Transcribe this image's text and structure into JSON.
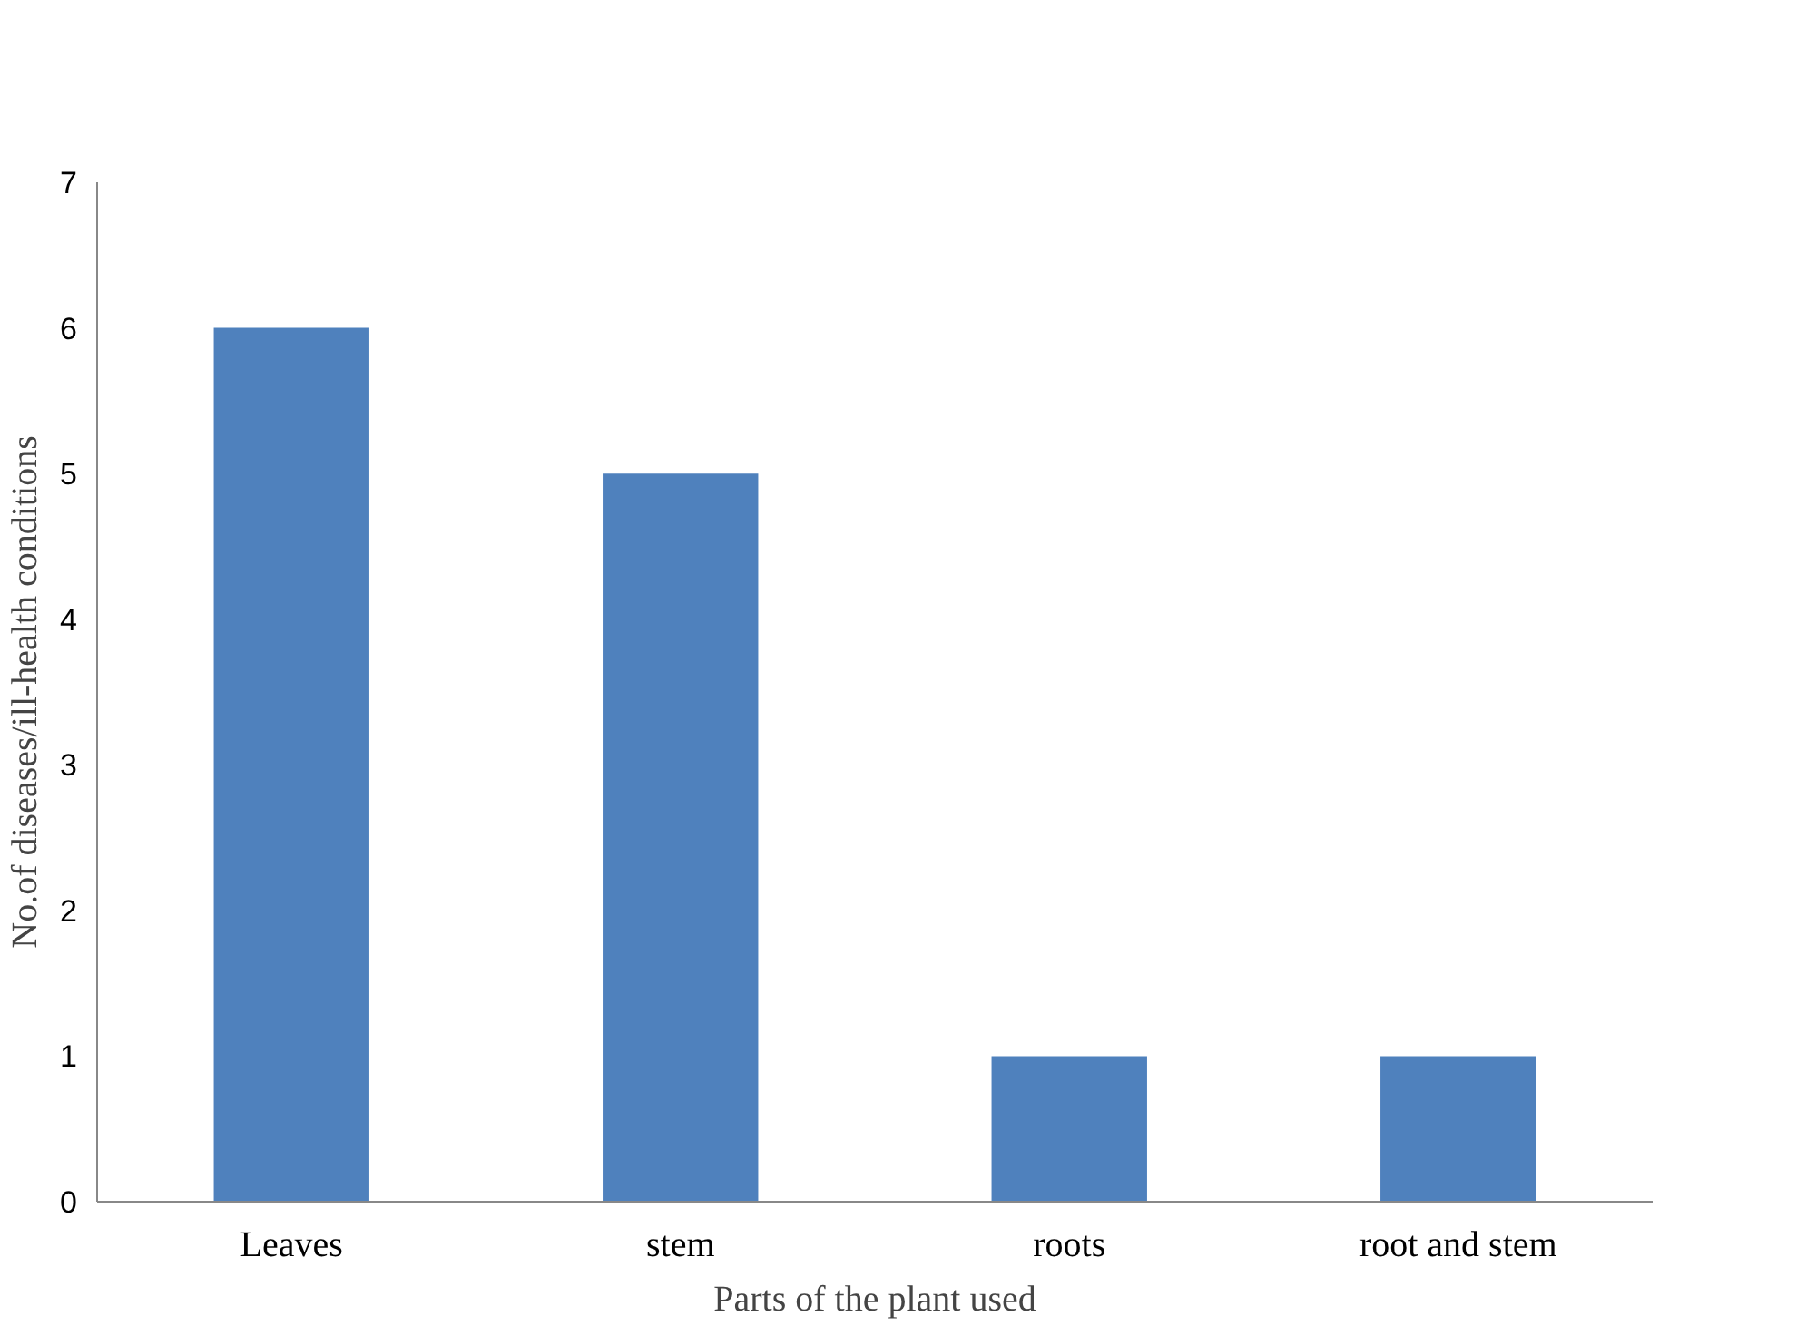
{
  "chart_data": {
    "type": "bar",
    "xlabel": "Parts of the plant used",
    "ylabel": "No.of diseases/ill-health conditions",
    "categories": [
      "Leaves",
      "stem",
      "roots",
      "root and stem"
    ],
    "values": [
      6,
      5,
      1,
      1
    ],
    "color": "#4f81bd",
    "ylim": [
      0,
      7
    ],
    "yticks": [
      0,
      1,
      2,
      3,
      4,
      5,
      6,
      7
    ],
    "grid": false
  }
}
